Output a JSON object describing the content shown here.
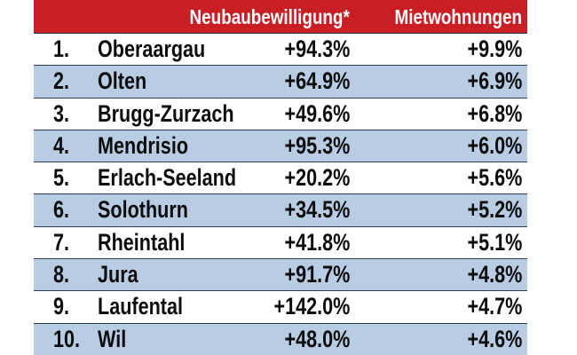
{
  "table": {
    "headers": {
      "neubau": "Neubaubewilligung*",
      "miet": "Mietwohnungen"
    },
    "rows": [
      {
        "rank": "1.",
        "name": "Oberaargau",
        "neubau": "+94.3%",
        "miet": "+9.9%"
      },
      {
        "rank": "2.",
        "name": "Olten",
        "neubau": "+64.9%",
        "miet": "+6.9%"
      },
      {
        "rank": "3.",
        "name": "Brugg-Zurzach",
        "neubau": "+49.6%",
        "miet": "+6.8%"
      },
      {
        "rank": "4.",
        "name": "Mendrisio",
        "neubau": "+95.3%",
        "miet": "+6.0%"
      },
      {
        "rank": "5.",
        "name": "Erlach-Seeland",
        "neubau": "+20.2%",
        "miet": "+5.6%"
      },
      {
        "rank": "6.",
        "name": "Solothurn",
        "neubau": "+34.5%",
        "miet": "+5.2%"
      },
      {
        "rank": "7.",
        "name": "Rheintahl",
        "neubau": "+41.8%",
        "miet": "+5.1%"
      },
      {
        "rank": "8.",
        "name": "Jura",
        "neubau": "+91.7%",
        "miet": "+4.8%"
      },
      {
        "rank": "9.",
        "name": "Laufental",
        "neubau": "+142.0%",
        "miet": "+4.7%"
      },
      {
        "rank": "10.",
        "name": "Wil",
        "neubau": "+48.0%",
        "miet": "+4.6%"
      }
    ]
  },
  "colors": {
    "header_bg": "#c91f24",
    "header_text": "#ffffff",
    "row_alt_bg": "#b8cde3",
    "row_bg": "#ffffff",
    "text": "#0d0d0d"
  }
}
